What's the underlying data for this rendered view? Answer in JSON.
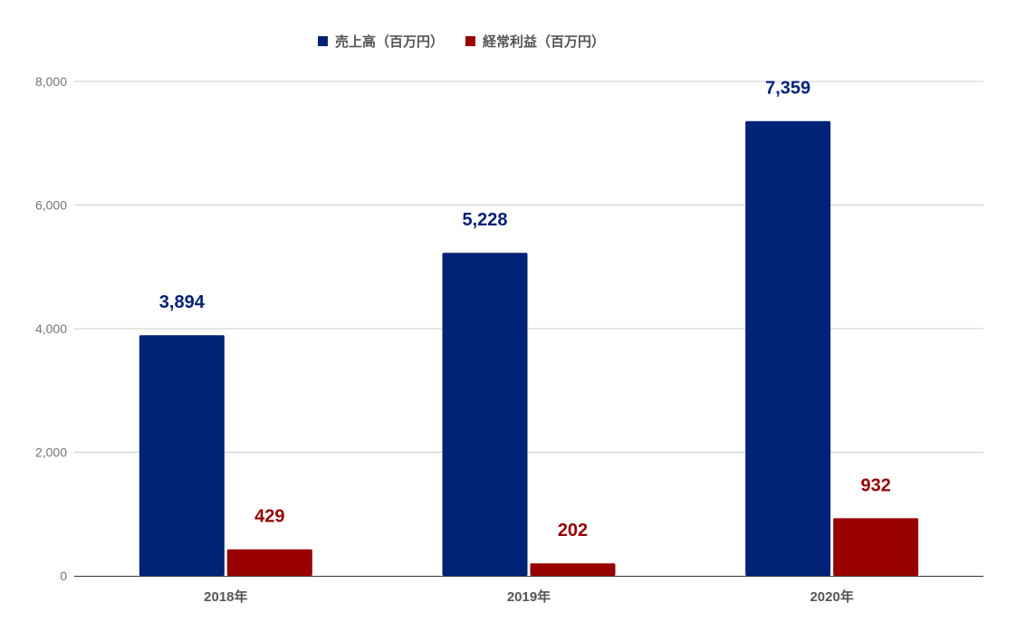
{
  "chart_data": {
    "type": "bar",
    "categories": [
      "2018年",
      "2019年",
      "2020年"
    ],
    "series": [
      {
        "name": "売上高（百万円）",
        "values": [
          3894,
          5228,
          7359
        ],
        "color": "#002277",
        "labels": [
          "3,894",
          "5,228",
          "7,359"
        ]
      },
      {
        "name": "経常利益（百万円）",
        "values": [
          429,
          202,
          932
        ],
        "color": "#990000",
        "labels": [
          "429",
          "202",
          "932"
        ]
      }
    ],
    "title": "",
    "xlabel": "",
    "ylabel": "",
    "ylim": [
      0,
      8000
    ],
    "yticks": [
      0,
      2000,
      4000,
      6000,
      8000
    ],
    "ytick_labels": [
      "0",
      "2,000",
      "4,000",
      "6,000",
      "8,000"
    ],
    "grid": true,
    "legend_position": "top-center",
    "gridline_color": "#cccccc",
    "axis_color": "#333333"
  }
}
